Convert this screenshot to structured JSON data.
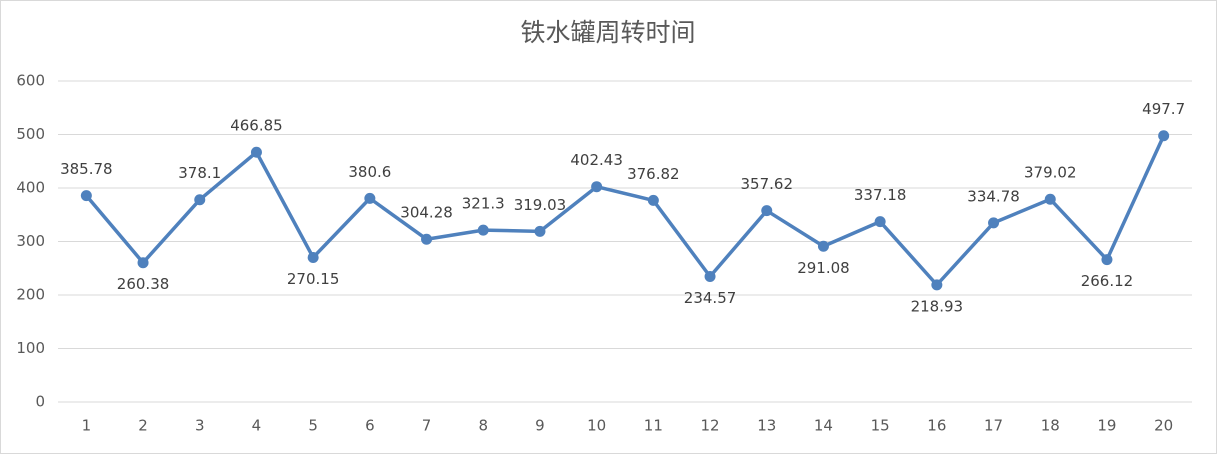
{
  "chart_data": {
    "type": "line",
    "title": "铁水罐周转时间",
    "categories": [
      "1",
      "2",
      "3",
      "4",
      "5",
      "6",
      "7",
      "8",
      "9",
      "10",
      "11",
      "12",
      "13",
      "14",
      "15",
      "16",
      "17",
      "18",
      "19",
      "20"
    ],
    "series": [
      {
        "name": "铁水罐周转时间",
        "color": "#4f81bd",
        "values": [
          385.78,
          260.38,
          378.1,
          466.85,
          270.15,
          380.6,
          304.28,
          321.3,
          319.03,
          402.43,
          376.82,
          234.57,
          357.62,
          291.08,
          337.18,
          218.93,
          334.78,
          379.02,
          266.12,
          497.7
        ]
      }
    ],
    "ylim": [
      0,
      600
    ],
    "yticks": [
      0,
      100,
      200,
      300,
      400,
      500,
      600
    ],
    "grid": true
  }
}
